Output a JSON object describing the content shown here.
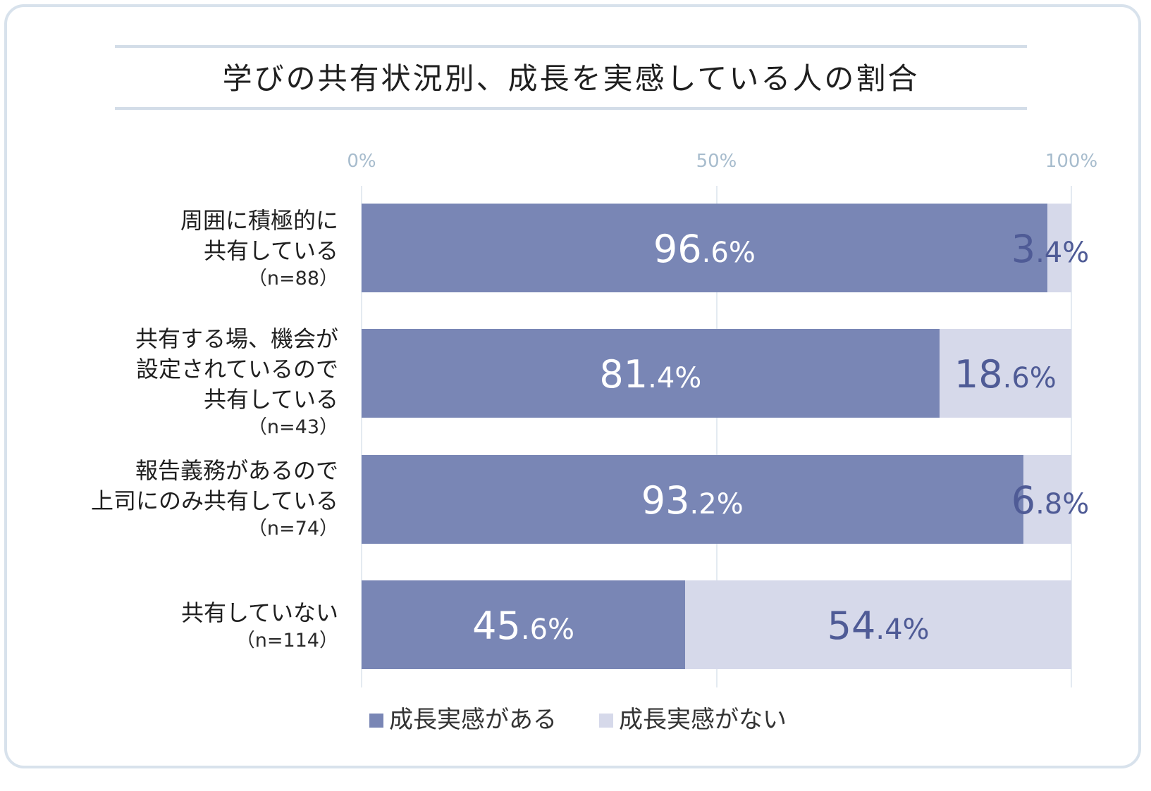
{
  "chart_data": {
    "type": "bar",
    "orientation": "horizontal",
    "stacked": true,
    "title": "学びの共有状況別、成長を実感している人の割合",
    "xlim": [
      0,
      100
    ],
    "x_ticks": [
      "0%",
      "50%",
      "100%"
    ],
    "categories": [
      {
        "lines": [
          "周囲に積極的に",
          "共有している"
        ],
        "n": "（n=88）"
      },
      {
        "lines": [
          "共有する場、機会が",
          "設定されているので",
          "共有している"
        ],
        "n": "（n=43）"
      },
      {
        "lines": [
          "報告義務があるので",
          "上司にのみ共有している"
        ],
        "n": "（n=74）"
      },
      {
        "lines": [
          "共有していない"
        ],
        "n": "（n=114）"
      }
    ],
    "series": [
      {
        "name": "成長実感がある",
        "color": "#7986b5",
        "values": [
          96.6,
          81.4,
          93.2,
          45.6
        ]
      },
      {
        "name": "成長実感がない",
        "color": "#d6d9ea",
        "values": [
          3.4,
          18.6,
          6.8,
          54.4
        ]
      }
    ],
    "legend_position": "bottom",
    "grid": true
  }
}
